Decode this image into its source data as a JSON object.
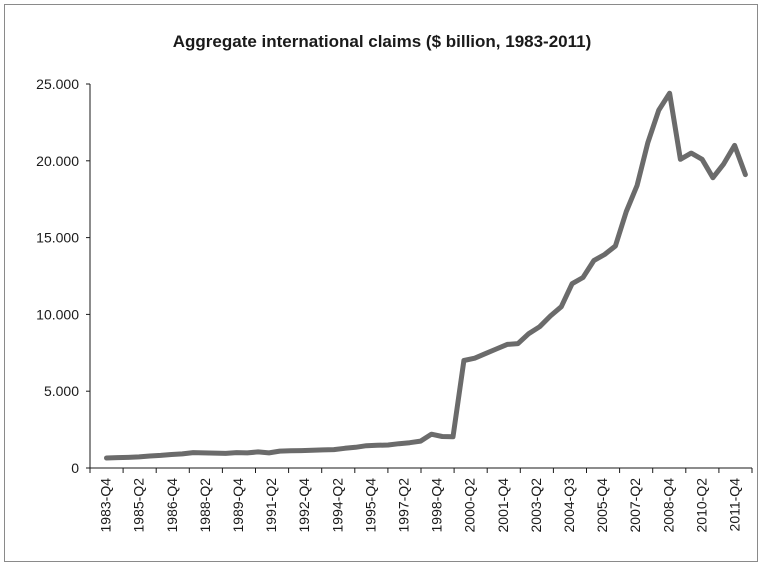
{
  "chart_data": {
    "type": "line",
    "title": "Aggregate international claims ($ billion, 1983-2011)",
    "xlabel": "",
    "ylabel": "",
    "ylim": [
      0,
      25000
    ],
    "yticks": [
      0,
      5000,
      10000,
      15000,
      20000,
      25000
    ],
    "ytick_labels": [
      "0",
      "5.000",
      "10.000",
      "15.000",
      "20.000",
      "25.000"
    ],
    "x_labels": [
      "1983-Q4",
      "1985-Q2",
      "1986-Q4",
      "1988-Q2",
      "1989-Q4",
      "1991-Q2",
      "1992-Q4",
      "1994-Q2",
      "1995-Q4",
      "1997-Q2",
      "1998-Q4",
      "2000-Q2",
      "2001-Q4",
      "2003-Q2",
      "2004-Q3",
      "2005-Q4",
      "2007-Q2",
      "2008-Q4",
      "2010-Q2",
      "2011-Q4"
    ],
    "grid": false,
    "legend": "none",
    "line_color": "#6b6b6b",
    "series": [
      {
        "values": [
          650,
          680,
          690,
          720,
          780,
          820,
          880,
          920,
          1000,
          980,
          970,
          950,
          1000,
          980,
          1050,
          980,
          1100,
          1120,
          1130,
          1150,
          1180,
          1200,
          1280,
          1350,
          1450,
          1480,
          1500,
          1580,
          1650,
          1750,
          2200,
          2050,
          2030,
          7000,
          7150,
          7450,
          7750,
          8050,
          8100,
          8750,
          9200,
          9900,
          10500,
          12000,
          12400,
          13500,
          13900,
          14450,
          16700,
          18400,
          21200,
          23300,
          24400,
          20100,
          20500,
          20100,
          18900,
          19800,
          21000,
          19100
        ]
      }
    ]
  }
}
